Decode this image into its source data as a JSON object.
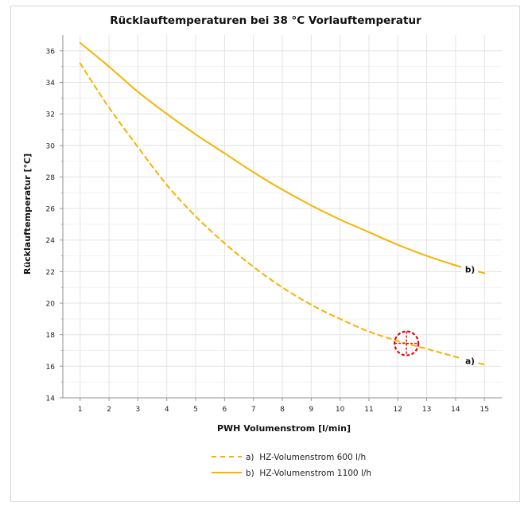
{
  "chart_data": {
    "type": "line",
    "title": "Rücklauftemperaturen bei 38 °C Vorlauftemperatur",
    "xlabel": "PWH Volumenstrom [l/min]",
    "ylabel": "Rücklauftemperatur [°C]",
    "x": [
      1,
      2,
      3,
      4,
      5,
      6,
      7,
      8,
      9,
      10,
      11,
      12,
      13,
      14,
      15
    ],
    "xlim": [
      0.4,
      15.6
    ],
    "ylim": [
      14,
      37
    ],
    "xticks": [
      "1",
      "2",
      "3",
      "4",
      "5",
      "6",
      "7",
      "8",
      "9",
      "10",
      "11",
      "12",
      "13",
      "14",
      "15"
    ],
    "yticks": [
      "14",
      "16",
      "18",
      "20",
      "22",
      "24",
      "26",
      "28",
      "30",
      "32",
      "34",
      "36"
    ],
    "grid": true,
    "legend_position": "bottom",
    "series": [
      {
        "name": "a)  HZ-Volumenstrom 600 l/h",
        "end_label": "a)",
        "style": "dashed",
        "color": "#f5b400",
        "values": [
          35.2,
          32.4,
          29.9,
          27.5,
          25.5,
          23.8,
          22.3,
          21.0,
          19.9,
          19.0,
          18.2,
          17.6,
          17.1,
          16.6,
          16.1
        ]
      },
      {
        "name": "b)  HZ-Volumenstrom 1100 l/h",
        "end_label": "b)",
        "style": "solid",
        "color": "#f5b400",
        "values": [
          36.5,
          35.0,
          33.4,
          32.0,
          30.7,
          29.5,
          28.3,
          27.2,
          26.2,
          25.3,
          24.5,
          23.7,
          23.0,
          22.4,
          21.9
        ]
      }
    ],
    "marker": {
      "name": "crosshair",
      "x": 12.3,
      "y": 17.45,
      "color": "#e30613"
    }
  }
}
